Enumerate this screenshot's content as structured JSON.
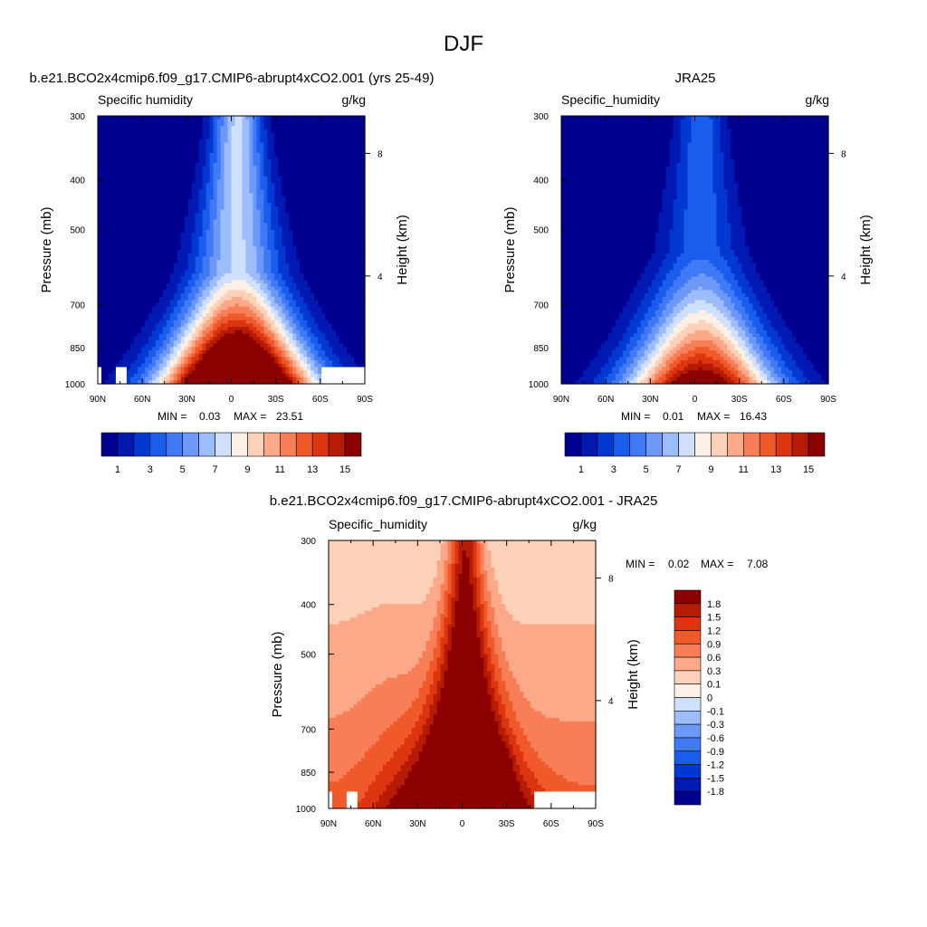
{
  "figure": {
    "title": "DJF"
  },
  "chart_data": [
    {
      "type": "heatmap",
      "title": "b.e21.BCO2x4cmip6.f09_g17.CMIP6-abrupt4xCO2.001 (yrs 25-49)",
      "left_label": "Specific humidity",
      "right_label": "g/kg",
      "ylabel": "Pressure (mb)",
      "y2label": "Height (km)",
      "x_ticks": [
        "90N",
        "60N",
        "30N",
        "0",
        "30S",
        "60S",
        "90S"
      ],
      "y_ticks": [
        "300",
        "400",
        "500",
        "700",
        "850",
        "1000"
      ],
      "y2_ticks": [
        "8",
        "4"
      ],
      "stats": {
        "min_label": "MIN =",
        "min": "0.03",
        "max_label": "MAX =",
        "max": "23.51"
      },
      "colorbar": {
        "orientation": "horizontal",
        "labels": [
          "1",
          "3",
          "5",
          "7",
          "9",
          "11",
          "13",
          "15"
        ],
        "colors": [
          "#000090",
          "#0019b2",
          "#0039d2",
          "#1a5ceb",
          "#3f79f5",
          "#6c98f8",
          "#9dbcfb",
          "#cfe0fd",
          "#fff0e6",
          "#fdd0b8",
          "#fba988",
          "#f87e58",
          "#f05a2b",
          "#dc3510",
          "#b61c03",
          "#8b0000"
        ]
      },
      "field": {
        "peak_value": 23.51,
        "surface_max": 26.0,
        "upper_max": 7.2,
        "low_floor": 1.8,
        "width_decay": 5.2,
        "cutoff_p": 930,
        "cutoff_lat_max": -36,
        "masked_surface": [
          [
            -90,
            -87
          ],
          [
            -77,
            -70
          ],
          [
            60,
            90
          ]
        ]
      }
    },
    {
      "type": "heatmap",
      "title": "JRA25",
      "left_label": "Specific_humidity",
      "right_label": "g/kg",
      "ylabel": "Pressure (mb)",
      "y2label": "Height (km)",
      "x_ticks": [
        "90N",
        "60N",
        "30N",
        "0",
        "30S",
        "60S",
        "90S"
      ],
      "y_ticks": [
        "300",
        "400",
        "500",
        "700",
        "850",
        "1000"
      ],
      "y2_ticks": [
        "8",
        "4"
      ],
      "stats": {
        "min_label": "MIN =",
        "min": "0.01",
        "max_label": "MAX =",
        "max": "16.43"
      },
      "colorbar": {
        "orientation": "horizontal",
        "labels": [
          "1",
          "3",
          "5",
          "7",
          "9",
          "11",
          "13",
          "15"
        ],
        "colors": [
          "#000090",
          "#0019b2",
          "#0039d2",
          "#1a5ceb",
          "#3f79f5",
          "#6c98f8",
          "#9dbcfb",
          "#cfe0fd",
          "#fff0e6",
          "#fdd0b8",
          "#fba988",
          "#f87e58",
          "#f05a2b",
          "#dc3510",
          "#b61c03",
          "#8b0000"
        ]
      },
      "field": {
        "peak_value": 16.43,
        "surface_max": 17.5,
        "upper_max": 3.6,
        "low_floor": 1.4,
        "width_decay": 5.0,
        "cutoff_p": 2000,
        "cutoff_lat_max": -36,
        "masked_surface": []
      }
    },
    {
      "type": "heatmap",
      "title": "b.e21.BCO2x4cmip6.f09_g17.CMIP6-abrupt4xCO2.001 - JRA25",
      "left_label": "Specific_humidity",
      "right_label": "g/kg",
      "ylabel": "Pressure (mb)",
      "y2label": "Height (km)",
      "x_ticks": [
        "90N",
        "60N",
        "30N",
        "0",
        "30S",
        "60S",
        "90S"
      ],
      "y_ticks": [
        "300",
        "400",
        "500",
        "700",
        "850",
        "1000"
      ],
      "y2_ticks": [
        "8",
        "4"
      ],
      "stats": {
        "min_label": "MIN =",
        "min": "0.02",
        "max_label": "MAX =",
        "max": "7.08"
      },
      "colorbar": {
        "orientation": "vertical",
        "labels": [
          "1.8",
          "1.5",
          "1.2",
          "0.9",
          "0.6",
          "0.3",
          "0.1",
          "0",
          "-0.1",
          "-0.3",
          "-0.6",
          "-0.9",
          "-1.2",
          "-1.5",
          "-1.8"
        ],
        "colors": [
          "#8b0000",
          "#b61c03",
          "#dc3510",
          "#f05a2b",
          "#f87e58",
          "#fba988",
          "#fdd0b8",
          "#fff0e6",
          "#cfe0fd",
          "#9dbcfb",
          "#6c98f8",
          "#3f79f5",
          "#1a5ceb",
          "#0039d2",
          "#0019b2",
          "#000090"
        ]
      },
      "field": {
        "peak_value": 7.08,
        "masked_surface": [
          [
            -90,
            -87
          ],
          [
            -77,
            -70
          ],
          [
            48,
            90
          ]
        ]
      }
    }
  ]
}
